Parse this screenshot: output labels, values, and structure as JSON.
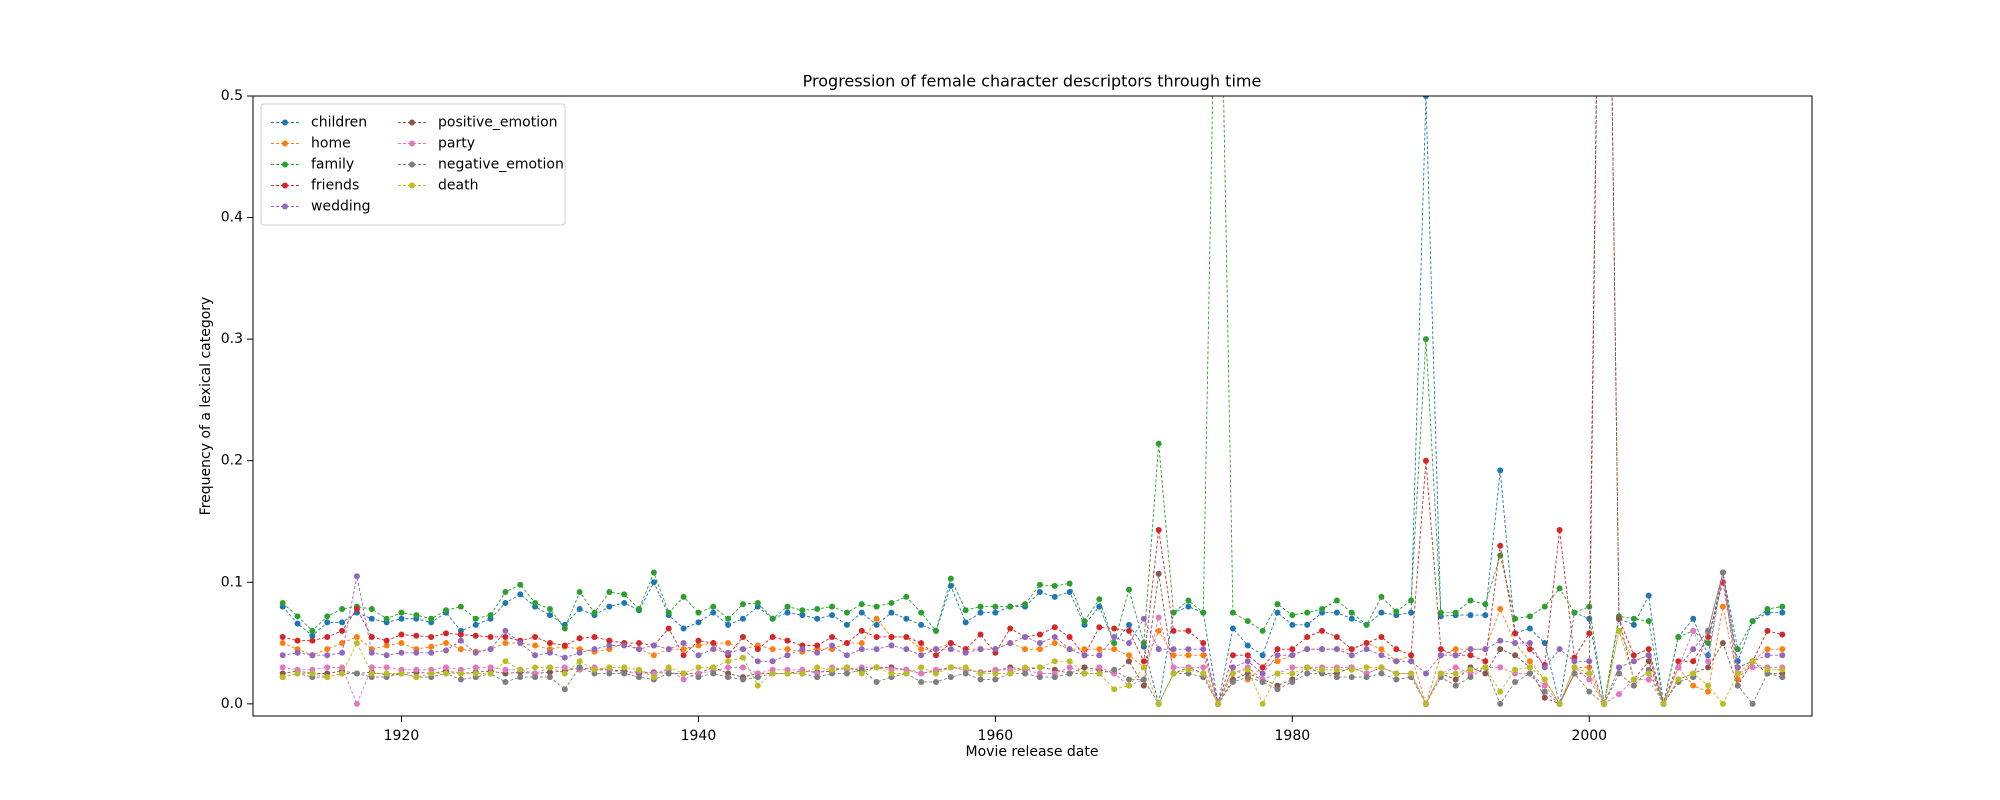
{
  "chart_data": {
    "type": "line",
    "title": "Progression of female character descriptors through time",
    "x_label": "Movie release date",
    "y_label": "Frequency of a lexical category",
    "x": [
      1912,
      1913,
      1914,
      1915,
      1916,
      1917,
      1918,
      1919,
      1920,
      1921,
      1922,
      1923,
      1924,
      1925,
      1926,
      1927,
      1928,
      1929,
      1930,
      1931,
      1932,
      1933,
      1934,
      1935,
      1936,
      1937,
      1938,
      1939,
      1940,
      1941,
      1942,
      1943,
      1944,
      1945,
      1946,
      1947,
      1948,
      1949,
      1950,
      1951,
      1952,
      1953,
      1954,
      1955,
      1956,
      1957,
      1958,
      1959,
      1960,
      1961,
      1962,
      1963,
      1964,
      1965,
      1966,
      1967,
      1968,
      1969,
      1970,
      1971,
      1972,
      1973,
      1974,
      1975,
      1976,
      1977,
      1978,
      1979,
      1980,
      1981,
      1982,
      1983,
      1984,
      1985,
      1986,
      1987,
      1988,
      1989,
      1990,
      1991,
      1992,
      1993,
      1994,
      1995,
      1996,
      1997,
      1998,
      1999,
      2000,
      2001,
      2002,
      2003,
      2004,
      2005,
      2006,
      2007,
      2008,
      2009,
      2010,
      2011,
      2012,
      2013
    ],
    "xlim": [
      1910,
      2015
    ],
    "xticks": [
      1920,
      1940,
      1960,
      1980,
      2000
    ],
    "ylim": [
      -0.01,
      0.5
    ],
    "yticks": [
      {
        "value": 0,
        "label": "0.0"
      },
      0.1,
      0.2,
      0.3,
      0.4,
      0.5
    ],
    "legend_loc": "upper left",
    "legend_columns": 2,
    "series": [
      {
        "name": "children",
        "color": "#1f77b4",
        "values": [
          0.08,
          0.066,
          0.056,
          0.067,
          0.067,
          0.075,
          0.07,
          0.067,
          0.07,
          0.07,
          0.067,
          0.075,
          0.06,
          0.065,
          0.07,
          0.083,
          0.09,
          0.08,
          0.073,
          0.065,
          0.078,
          0.073,
          0.08,
          0.083,
          0.077,
          0.1,
          0.073,
          0.062,
          0.067,
          0.075,
          0.065,
          0.07,
          0.08,
          0.07,
          0.075,
          0.073,
          0.07,
          0.073,
          0.065,
          0.075,
          0.065,
          0.075,
          0.07,
          0.065,
          0.06,
          0.097,
          0.067,
          0.075,
          0.075,
          0.08,
          0.08,
          0.092,
          0.088,
          0.092,
          0.065,
          0.08,
          0.05,
          0.065,
          0.047,
          0,
          0.075,
          0.08,
          0.075,
          0,
          0.062,
          0.048,
          0.04,
          0.075,
          0.065,
          0.065,
          0.075,
          0.075,
          0.07,
          0.065,
          0.075,
          0.073,
          0.075,
          0.5,
          0.072,
          0.073,
          0.073,
          0.073,
          0.192,
          0.058,
          0.062,
          0.05,
          0,
          0.075,
          0.07,
          0,
          0.07,
          0.065,
          0.089,
          0,
          0.055,
          0.07,
          0.04,
          0.108,
          0.035,
          0.068,
          0.075,
          0.075
        ]
      },
      {
        "name": "home",
        "color": "#ff7f0e",
        "values": [
          0.05,
          0.045,
          0.04,
          0.045,
          0.05,
          0.055,
          0.045,
          0.048,
          0.05,
          0.045,
          0.047,
          0.05,
          0.045,
          0.043,
          0.045,
          0.05,
          0.05,
          0.048,
          0.045,
          0.047,
          0.045,
          0.043,
          0.045,
          0.05,
          0.045,
          0.04,
          0.045,
          0.045,
          0.048,
          0.05,
          0.05,
          0.045,
          0.048,
          0.045,
          0.045,
          0.043,
          0.045,
          0.045,
          0.05,
          0.05,
          0.07,
          0.055,
          0.055,
          0.045,
          0.045,
          0.05,
          0.045,
          0.045,
          0.045,
          0.05,
          0.045,
          0.045,
          0.05,
          0.045,
          0.045,
          0.045,
          0.045,
          0.04,
          0.03,
          0.06,
          0.04,
          0.04,
          0.04,
          0,
          0.03,
          0.02,
          0.03,
          0.035,
          0.04,
          0.045,
          0.045,
          0.045,
          0.045,
          0.05,
          0.045,
          0.035,
          0.04,
          0,
          0.04,
          0.045,
          0.045,
          0.045,
          0.078,
          0.05,
          0.035,
          0.02,
          0,
          0.03,
          0.03,
          0,
          0.06,
          0.035,
          0.04,
          0,
          0.03,
          0.015,
          0.01,
          0.08,
          0.02,
          0.035,
          0.045,
          0.045
        ]
      },
      {
        "name": "family",
        "color": "#2ca02c",
        "values": [
          0.083,
          0.072,
          0.06,
          0.072,
          0.078,
          0.08,
          0.078,
          0.07,
          0.075,
          0.073,
          0.07,
          0.077,
          0.08,
          0.07,
          0.073,
          0.092,
          0.098,
          0.083,
          0.078,
          0.062,
          0.092,
          0.075,
          0.092,
          0.09,
          0.078,
          0.108,
          0.075,
          0.088,
          0.075,
          0.08,
          0.07,
          0.082,
          0.083,
          0.07,
          0.08,
          0.077,
          0.078,
          0.08,
          0.075,
          0.082,
          0.08,
          0.083,
          0.088,
          0.075,
          0.06,
          0.103,
          0.077,
          0.08,
          0.08,
          0.08,
          0.082,
          0.098,
          0.097,
          0.099,
          0.068,
          0.086,
          0.05,
          0.094,
          0.05,
          0.214,
          0.075,
          0.085,
          0.075,
          0.75,
          0.075,
          0.068,
          0.06,
          0.082,
          0.073,
          0.075,
          0.078,
          0.085,
          0.075,
          0.065,
          0.088,
          0.076,
          0.085,
          0.3,
          0.075,
          0.075,
          0.085,
          0.082,
          0.122,
          0.07,
          0.072,
          0.08,
          0.095,
          0.075,
          0.08,
          0,
          0.072,
          0.07,
          0.068,
          0,
          0.055,
          0.06,
          0.05,
          0.108,
          0.045,
          0.068,
          0.078,
          0.08
        ]
      },
      {
        "name": "friends",
        "color": "#d62728",
        "values": [
          0.055,
          0.052,
          0.052,
          0.055,
          0.06,
          0.078,
          0.055,
          0.052,
          0.057,
          0.056,
          0.055,
          0.058,
          0.057,
          0.056,
          0.055,
          0.055,
          0.052,
          0.055,
          0.05,
          0.048,
          0.054,
          0.055,
          0.052,
          0.05,
          0.05,
          0.048,
          0.062,
          0.04,
          0.052,
          0.05,
          0.04,
          0.055,
          0.045,
          0.055,
          0.052,
          0.048,
          0.048,
          0.055,
          0.05,
          0.06,
          0.055,
          0.055,
          0.055,
          0.05,
          0.04,
          0.05,
          0.045,
          0.057,
          0.042,
          0.062,
          0.055,
          0.057,
          0.063,
          0.055,
          0.04,
          0.063,
          0.062,
          0.06,
          0.035,
          0.143,
          0.06,
          0.06,
          0.05,
          0,
          0.04,
          0.04,
          0.03,
          0.045,
          0.045,
          0.055,
          0.06,
          0.055,
          0.045,
          0.05,
          0.055,
          0.045,
          0.04,
          0.2,
          0.045,
          0.04,
          0.04,
          0.035,
          0.13,
          0.058,
          0.045,
          0.032,
          0.143,
          0.038,
          0.058,
          1.0,
          0.07,
          0.04,
          0.045,
          0,
          0.035,
          0.035,
          0.055,
          0.1,
          0.03,
          0.035,
          0.06,
          0.057
        ]
      },
      {
        "name": "wedding",
        "color": "#9467bd",
        "values": [
          0.04,
          0.042,
          0.04,
          0.04,
          0.042,
          0.105,
          0.042,
          0.04,
          0.042,
          0.042,
          0.042,
          0.044,
          0.052,
          0.042,
          0.045,
          0.06,
          0.05,
          0.04,
          0.042,
          0.038,
          0.042,
          0.045,
          0.048,
          0.048,
          0.045,
          0.048,
          0.045,
          0.05,
          0.04,
          0.045,
          0.042,
          0.045,
          0.035,
          0.035,
          0.04,
          0.045,
          0.042,
          0.048,
          0.04,
          0.045,
          0.045,
          0.048,
          0.045,
          0.04,
          0.045,
          0.045,
          0.042,
          0.045,
          0.045,
          0.05,
          0.055,
          0.05,
          0.055,
          0.045,
          0.04,
          0.04,
          0.055,
          0.05,
          0.07,
          0.045,
          0.045,
          0.045,
          0.045,
          0,
          0.03,
          0.035,
          0.025,
          0.04,
          0.04,
          0.045,
          0.045,
          0.045,
          0.04,
          0.045,
          0.04,
          0.035,
          0.035,
          0.025,
          0.04,
          0.04,
          0.045,
          0.045,
          0.052,
          0.05,
          0.05,
          0.03,
          0.045,
          0.035,
          0.035,
          0,
          0.03,
          0.035,
          0.04,
          0,
          0.03,
          0.045,
          0.06,
          0.108,
          0.03,
          0.035,
          0.04,
          0.04
        ]
      },
      {
        "name": "positive_emotion",
        "color": "#8c564b",
        "values": [
          0.025,
          0.027,
          0.025,
          0.025,
          0.027,
          0.025,
          0.026,
          0.024,
          0.025,
          0.026,
          0.025,
          0.027,
          0.025,
          0.026,
          0.027,
          0.025,
          0.026,
          0.025,
          0.026,
          0.027,
          0.03,
          0.028,
          0.028,
          0.027,
          0.025,
          0.026,
          0.025,
          0.025,
          0.025,
          0.03,
          0.025,
          0.022,
          0.025,
          0.025,
          0.025,
          0.027,
          0.026,
          0.027,
          0.03,
          0.027,
          0.03,
          0.03,
          0.028,
          0.025,
          0.027,
          0.03,
          0.028,
          0.026,
          0.027,
          0.03,
          0.028,
          0.03,
          0.028,
          0.025,
          0.03,
          0.028,
          0.025,
          0.035,
          0.015,
          0.107,
          0.025,
          0.03,
          0.025,
          0,
          0.02,
          0.025,
          0.02,
          0.015,
          0.02,
          0.03,
          0.025,
          0.025,
          0.03,
          0.025,
          0.03,
          0.025,
          0.025,
          0,
          0.025,
          0.02,
          0.03,
          0.025,
          0.045,
          0.04,
          0.03,
          0.005,
          0,
          0.025,
          0.025,
          1.0,
          0.07,
          0.02,
          0.035,
          0,
          0.02,
          0.025,
          0.03,
          0.05,
          0.015,
          0.035,
          0.025,
          0.025
        ]
      },
      {
        "name": "party",
        "color": "#e377c2",
        "values": [
          0.03,
          0.028,
          0.028,
          0.03,
          0.03,
          0,
          0.03,
          0.03,
          0.028,
          0.028,
          0.028,
          0.03,
          0.028,
          0.03,
          0.03,
          0.028,
          0.028,
          0.025,
          0.03,
          0.03,
          0.028,
          0.03,
          0.028,
          0.025,
          0.027,
          0.025,
          0.028,
          0.02,
          0.025,
          0.027,
          0.03,
          0.03,
          0.025,
          0.028,
          0.028,
          0.028,
          0.025,
          0.03,
          0.028,
          0.03,
          0.03,
          0.028,
          0.028,
          0.025,
          0.028,
          0.03,
          0.028,
          0.026,
          0.028,
          0.028,
          0.028,
          0.025,
          0.025,
          0.03,
          0.025,
          0.03,
          0.025,
          0.015,
          0.02,
          0.071,
          0.03,
          0.03,
          0.03,
          0,
          0.025,
          0.03,
          0.02,
          0.025,
          0.03,
          0.03,
          0.03,
          0.03,
          0.03,
          0.025,
          0.03,
          0.025,
          0.025,
          0,
          0.025,
          0.03,
          0.025,
          0.03,
          0.03,
          0.025,
          0.025,
          0.015,
          0,
          0.03,
          0.02,
          0,
          0.008,
          0.02,
          0.02,
          0,
          0.03,
          0.06,
          0.035,
          0.108,
          0.025,
          0.03,
          0.03,
          0.03
        ]
      },
      {
        "name": "negative_emotion",
        "color": "#7f7f7f",
        "values": [
          0.022,
          0.025,
          0.022,
          0.022,
          0.025,
          0.025,
          0.022,
          0.022,
          0.025,
          0.022,
          0.022,
          0.025,
          0.02,
          0.022,
          0.025,
          0.018,
          0.022,
          0.022,
          0.022,
          0.012,
          0.03,
          0.025,
          0.025,
          0.025,
          0.022,
          0.02,
          0.025,
          0.025,
          0.022,
          0.025,
          0.022,
          0.02,
          0.022,
          0.025,
          0.025,
          0.025,
          0.022,
          0.025,
          0.025,
          0.028,
          0.018,
          0.022,
          0.025,
          0.018,
          0.018,
          0.022,
          0.025,
          0.02,
          0.02,
          0.025,
          0.025,
          0.022,
          0.022,
          0.025,
          0.025,
          0.025,
          0.028,
          0.02,
          0.02,
          0,
          0.025,
          0.025,
          0.022,
          0,
          0.018,
          0.022,
          0.018,
          0.012,
          0.018,
          0.025,
          0.025,
          0.022,
          0.022,
          0.022,
          0.025,
          0.02,
          0.022,
          0,
          0.022,
          0.015,
          0.022,
          0.03,
          0,
          0.018,
          0.025,
          0.01,
          0,
          0.025,
          0.01,
          0,
          0.025,
          0.015,
          0.028,
          0,
          0.018,
          0.022,
          0.06,
          0.108,
          0.015,
          0,
          0.025,
          0.022
        ]
      },
      {
        "name": "death",
        "color": "#bcbd22",
        "values": [
          0.022,
          0.025,
          0.025,
          0.022,
          0.025,
          0.05,
          0.025,
          0.025,
          0.025,
          0.022,
          0.025,
          0.025,
          0.025,
          0.025,
          0.025,
          0.035,
          0.028,
          0.03,
          0.03,
          0.025,
          0.035,
          0.028,
          0.03,
          0.03,
          0.028,
          0.022,
          0.03,
          0.025,
          0.03,
          0.03,
          0.035,
          0.038,
          0.015,
          0.025,
          0.025,
          0.025,
          0.03,
          0.028,
          0.03,
          0.025,
          0.03,
          0.025,
          0.025,
          0.03,
          0.025,
          0.03,
          0.03,
          0.025,
          0.025,
          0.025,
          0.03,
          0.03,
          0.035,
          0.035,
          0.025,
          0.025,
          0.012,
          0.015,
          0.03,
          0,
          0.025,
          0.028,
          0.025,
          0,
          0.025,
          0.028,
          0,
          0.025,
          0.025,
          0.03,
          0.028,
          0.028,
          0.028,
          0.03,
          0.03,
          0.025,
          0.025,
          0,
          0.025,
          0.025,
          0.028,
          0.03,
          0.01,
          0.028,
          0.03,
          0.02,
          0,
          0.03,
          0.025,
          0,
          0.06,
          0.02,
          0.025,
          0,
          0.02,
          0.025,
          0.015,
          0,
          0.025,
          0.035,
          0.028,
          0.028
        ]
      }
    ]
  }
}
